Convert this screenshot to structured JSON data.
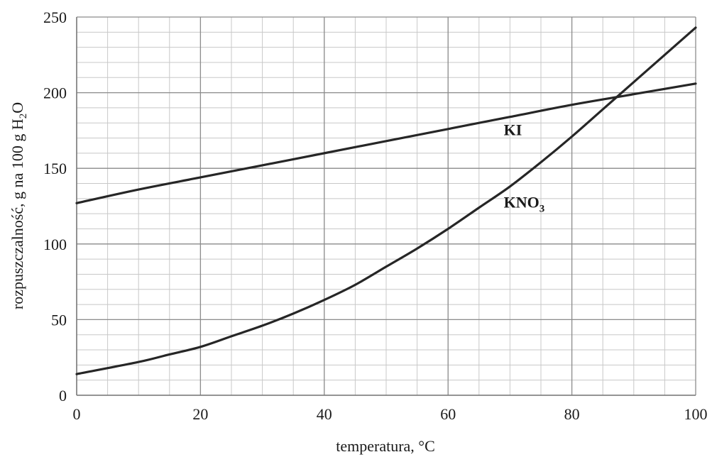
{
  "chart_data": {
    "type": "line",
    "title": "",
    "xlabel": "temperatura, °C",
    "ylabel": {
      "main": "rozpuszczalność, g na 100 g H",
      "sub": "2",
      "tail": "O"
    },
    "xlim": [
      0,
      100
    ],
    "ylim": [
      0,
      250
    ],
    "x_ticks": [
      0,
      20,
      40,
      60,
      80,
      100
    ],
    "y_ticks": [
      0,
      50,
      100,
      150,
      200,
      250
    ],
    "minor_grid": {
      "x_step": 5,
      "y_step": 10
    },
    "grid": true,
    "line_color": "#262626",
    "series": [
      {
        "name": "KI",
        "label": {
          "text": "KI",
          "sub": ""
        },
        "x": [
          0,
          10,
          20,
          30,
          40,
          50,
          60,
          70,
          80,
          90,
          100
        ],
        "y": [
          127,
          136,
          144,
          152,
          160,
          168,
          176,
          184,
          192,
          199,
          206
        ]
      },
      {
        "name": "KNO3",
        "label": {
          "text": "KNO",
          "sub": "3"
        },
        "x": [
          0,
          10,
          15,
          20,
          25,
          30,
          35,
          40,
          45,
          50,
          55,
          60,
          65,
          70,
          75,
          80,
          85,
          90,
          95,
          100
        ],
        "y": [
          14,
          22,
          27,
          32,
          39,
          46,
          54,
          63,
          73,
          85,
          97,
          110,
          124,
          138,
          154,
          171,
          189,
          207,
          225,
          243
        ]
      }
    ]
  }
}
